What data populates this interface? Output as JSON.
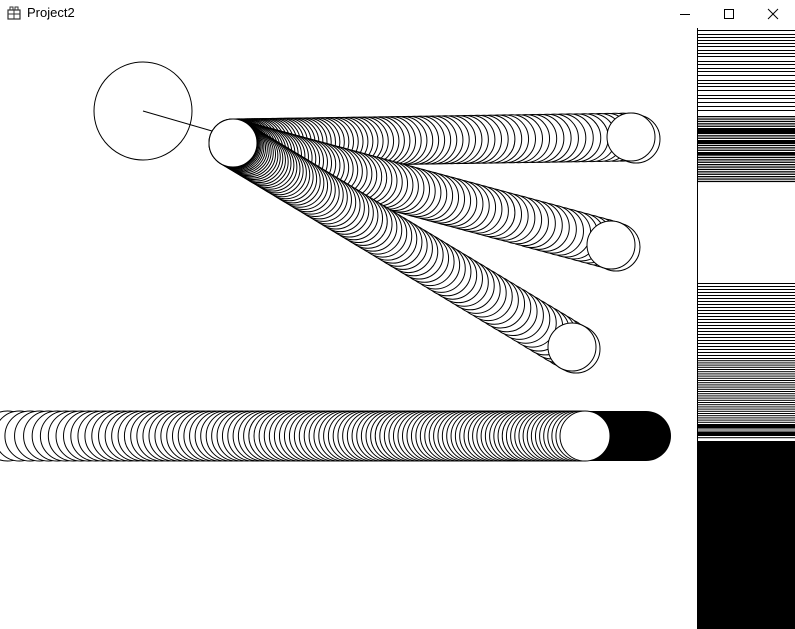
{
  "window": {
    "title": "Project2",
    "icons": {
      "app": "app-icon",
      "minimize": "minimize-icon",
      "maximize": "maximize-icon",
      "close": "close-icon"
    }
  },
  "colors": {
    "background": "#ffffff",
    "ink": "#000000"
  }
}
